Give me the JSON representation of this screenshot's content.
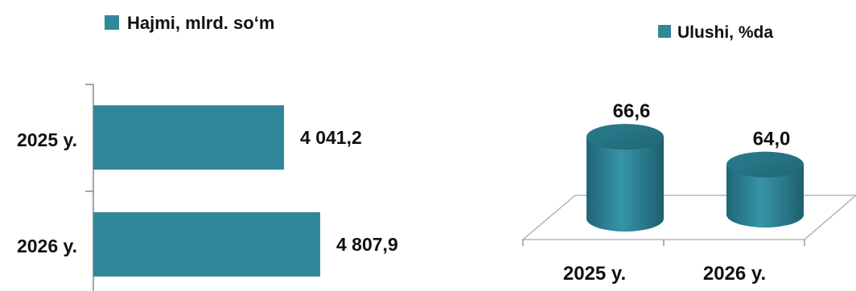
{
  "chart_data": [
    {
      "type": "bar",
      "orientation": "horizontal",
      "categories": [
        "2025 y.",
        "2026 y."
      ],
      "series": [
        {
          "name": "Hajmi, mlrd. so‘m",
          "values": [
            4041.2,
            4807.9
          ],
          "labels": [
            "4 041,2",
            "4 807,9"
          ]
        }
      ],
      "legend": "top",
      "grid": false,
      "color": "#31879a"
    },
    {
      "type": "bar",
      "style": "3d-cylinder",
      "categories": [
        "2025 y.",
        "2026 y."
      ],
      "series": [
        {
          "name": "Ulushi, %da",
          "values": [
            66.6,
            64.0
          ],
          "labels": [
            "66,6",
            "64,0"
          ]
        }
      ],
      "legend": "top",
      "grid": false,
      "color": "#31879a"
    }
  ]
}
